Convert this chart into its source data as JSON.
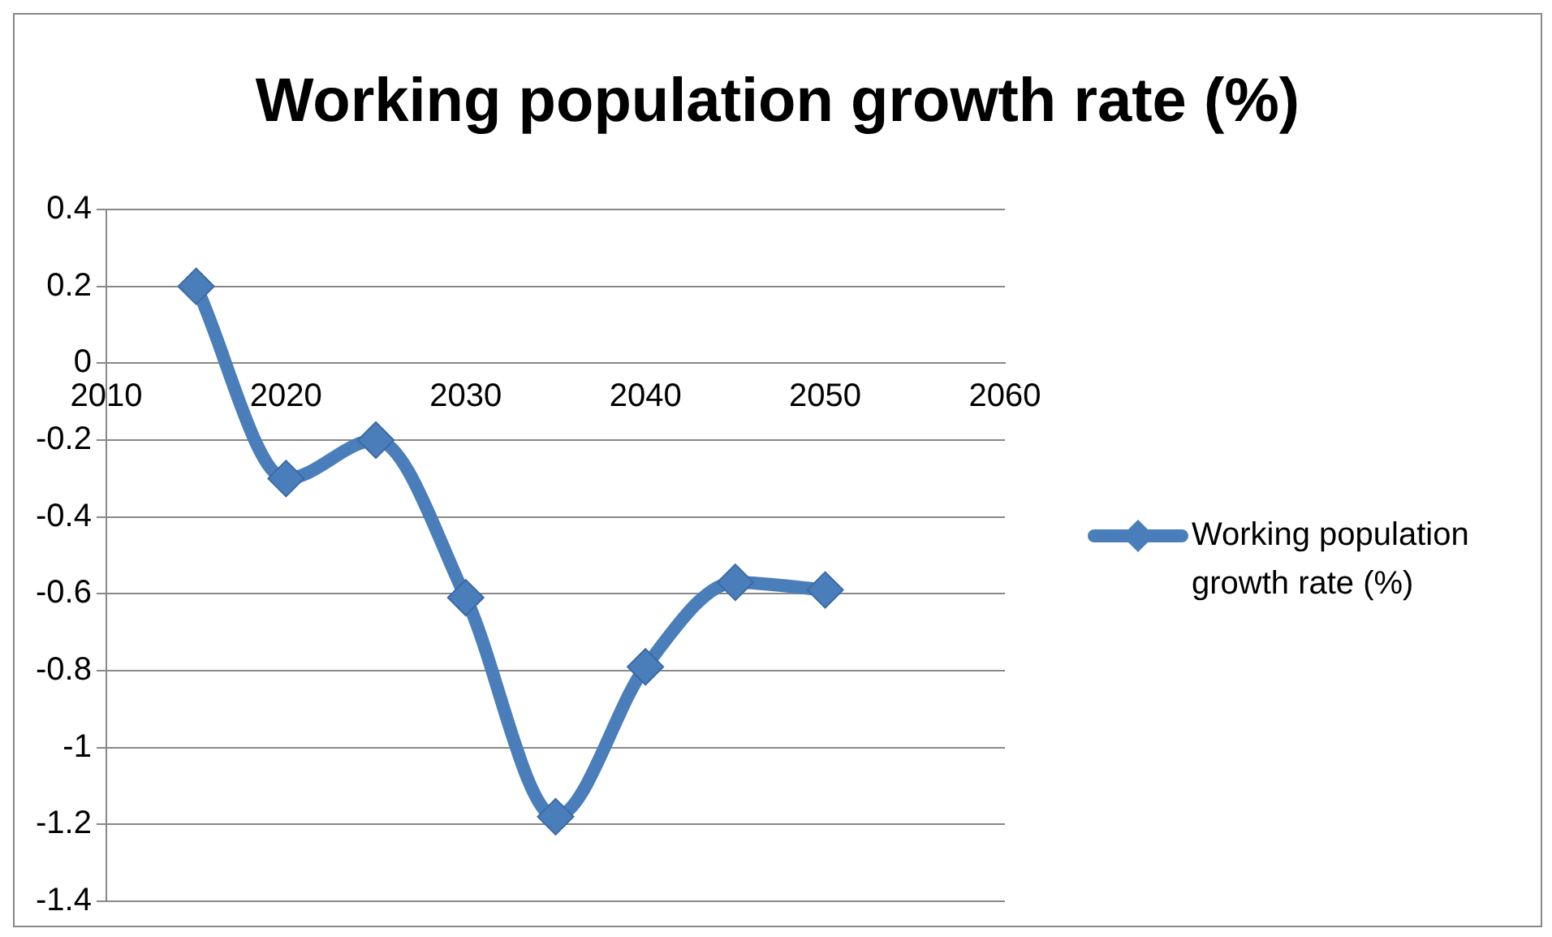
{
  "chart_data": {
    "type": "line",
    "title": "Working population growth rate (%)",
    "x": [
      2015,
      2020,
      2025,
      2030,
      2035,
      2040,
      2045,
      2050
    ],
    "series": [
      {
        "name": "Working population growth rate (%)",
        "color": "#4a7ebb",
        "values": [
          0.2,
          -0.3,
          -0.2,
          -0.61,
          -1.18,
          -0.79,
          -0.57,
          -0.59
        ]
      }
    ],
    "xlim": [
      2010,
      2060
    ],
    "xticks": [
      2010,
      2020,
      2030,
      2040,
      2050,
      2060
    ],
    "ylim": [
      -1.4,
      0.4
    ],
    "yticks": [
      -1.4,
      -1.2,
      -1,
      -0.8,
      -0.6,
      -0.4,
      -0.2,
      0,
      0.2,
      0.4
    ],
    "grid": "y",
    "legend": "right",
    "marker": "diamond",
    "line_style": "solid"
  }
}
